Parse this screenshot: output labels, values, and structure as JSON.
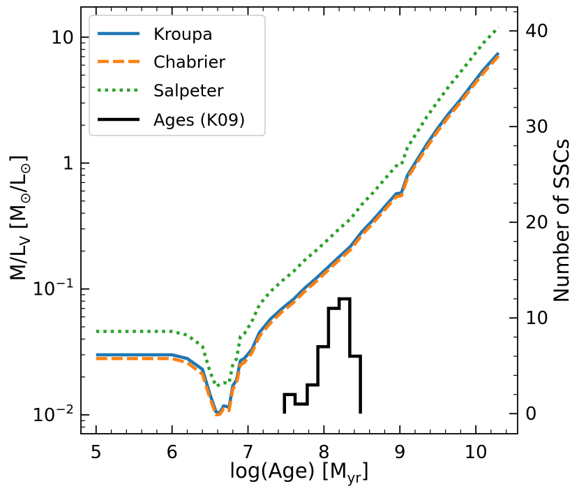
{
  "chart_data": {
    "type": "line",
    "xlabel": "log(Age) [M",
    "xlabel_sub": "yr",
    "xlabel_end": "]",
    "ylabel_left": {
      "p1": "M/L",
      "sub": "V",
      "p2": " [M",
      "odot1": "⊙",
      "p3": "/L",
      "odot2": "⊙",
      "p4": "]"
    },
    "ylabel_right": "Number of SSCs",
    "xlim": [
      4.8,
      10.55
    ],
    "ylim_left_log10": [
      -2.15,
      1.24
    ],
    "ylim_right": [
      -2.1,
      42.5
    ],
    "x_ticks": [
      {
        "value": 5,
        "label": "5"
      },
      {
        "value": 6,
        "label": "6"
      },
      {
        "value": 7,
        "label": "7"
      },
      {
        "value": 8,
        "label": "8"
      },
      {
        "value": 9,
        "label": "9"
      },
      {
        "value": 10,
        "label": "10"
      }
    ],
    "y_left_ticks": [
      {
        "log": -2,
        "base": "10",
        "exp": "−2",
        "plain": ""
      },
      {
        "log": -1,
        "base": "10",
        "exp": "−1",
        "plain": ""
      },
      {
        "log": 0,
        "base": "",
        "exp": "",
        "plain": "1"
      },
      {
        "log": 1,
        "base": "",
        "exp": "",
        "plain": "10"
      }
    ],
    "y_right_ticks": [
      {
        "value": 0,
        "label": "0"
      },
      {
        "value": 10,
        "label": "10"
      },
      {
        "value": 20,
        "label": "20"
      },
      {
        "value": 30,
        "label": "30"
      },
      {
        "value": 40,
        "label": "40"
      }
    ],
    "series": [
      {
        "name": "Kroupa",
        "color": "#1f77b4",
        "style": "solid",
        "x": [
          5.0,
          5.5,
          6.0,
          6.2,
          6.4,
          6.5,
          6.58,
          6.63,
          6.68,
          6.75,
          6.8,
          6.85,
          6.9,
          6.95,
          7.05,
          7.15,
          7.3,
          7.45,
          7.6,
          7.75,
          7.9,
          8.05,
          8.2,
          8.35,
          8.5,
          8.65,
          8.8,
          8.95,
          9.02,
          9.1,
          9.2,
          9.35,
          9.5,
          9.65,
          9.8,
          9.95,
          10.1,
          10.3
        ],
        "y": [
          0.03,
          0.03,
          0.03,
          0.028,
          0.023,
          0.0145,
          0.0105,
          0.0104,
          0.0118,
          0.0115,
          0.017,
          0.019,
          0.027,
          0.028,
          0.033,
          0.045,
          0.058,
          0.07,
          0.083,
          0.102,
          0.122,
          0.148,
          0.18,
          0.218,
          0.285,
          0.355,
          0.45,
          0.57,
          0.58,
          0.8,
          1.0,
          1.4,
          1.9,
          2.5,
          3.2,
          4.2,
          5.5,
          7.5
        ]
      },
      {
        "name": "Chabrier",
        "color": "#ff7f0e",
        "style": "dashed",
        "x": [
          5.0,
          5.5,
          6.0,
          6.2,
          6.4,
          6.5,
          6.58,
          6.63,
          6.68,
          6.75,
          6.8,
          6.85,
          6.9,
          6.95,
          7.05,
          7.15,
          7.3,
          7.45,
          7.6,
          7.75,
          7.9,
          8.05,
          8.2,
          8.35,
          8.5,
          8.65,
          8.8,
          8.95,
          9.02,
          9.1,
          9.2,
          9.35,
          9.5,
          9.65,
          9.8,
          9.95,
          10.1,
          10.3
        ],
        "y": [
          0.028,
          0.028,
          0.028,
          0.026,
          0.021,
          0.0135,
          0.01,
          0.0101,
          0.0112,
          0.0108,
          0.016,
          0.018,
          0.025,
          0.026,
          0.031,
          0.042,
          0.054,
          0.066,
          0.078,
          0.096,
          0.115,
          0.14,
          0.17,
          0.205,
          0.268,
          0.335,
          0.425,
          0.54,
          0.55,
          0.76,
          0.95,
          1.32,
          1.8,
          2.37,
          3.05,
          4.0,
          5.2,
          7.1
        ]
      },
      {
        "name": "Salpeter",
        "color": "#2ca02c",
        "style": "dotted",
        "x": [
          5.0,
          5.5,
          6.0,
          6.2,
          6.4,
          6.5,
          6.58,
          6.63,
          6.68,
          6.75,
          6.8,
          6.85,
          6.9,
          6.95,
          7.05,
          7.15,
          7.3,
          7.45,
          7.6,
          7.75,
          7.9,
          8.05,
          8.2,
          8.35,
          8.5,
          8.65,
          8.8,
          8.95,
          9.02,
          9.1,
          9.2,
          9.35,
          9.5,
          9.65,
          9.8,
          9.95,
          10.1,
          10.3
        ],
        "y": [
          0.046,
          0.046,
          0.046,
          0.043,
          0.035,
          0.022,
          0.0168,
          0.0175,
          0.018,
          0.0178,
          0.025,
          0.028,
          0.042,
          0.044,
          0.055,
          0.075,
          0.096,
          0.116,
          0.138,
          0.17,
          0.203,
          0.246,
          0.3,
          0.36,
          0.47,
          0.585,
          0.745,
          0.95,
          0.97,
          1.33,
          1.66,
          2.31,
          3.1,
          4.1,
          5.3,
          6.9,
          9.0,
          12.0
        ]
      }
    ],
    "histogram": {
      "name": "Ages (K09)",
      "color": "#000000",
      "edges": [
        7.48,
        7.62,
        7.78,
        7.92,
        8.06,
        8.2,
        8.34,
        8.48
      ],
      "counts": [
        2,
        1,
        3,
        7,
        11,
        12,
        6
      ]
    },
    "legend": {
      "position": "top-left",
      "entries": [
        {
          "label": "Kroupa",
          "color": "#1f77b4",
          "style": "solid"
        },
        {
          "label": "Chabrier",
          "color": "#ff7f0e",
          "style": "dashed"
        },
        {
          "label": "Salpeter",
          "color": "#2ca02c",
          "style": "dotted"
        },
        {
          "label": "Ages (K09)",
          "color": "#000000",
          "style": "solid"
        }
      ]
    }
  }
}
